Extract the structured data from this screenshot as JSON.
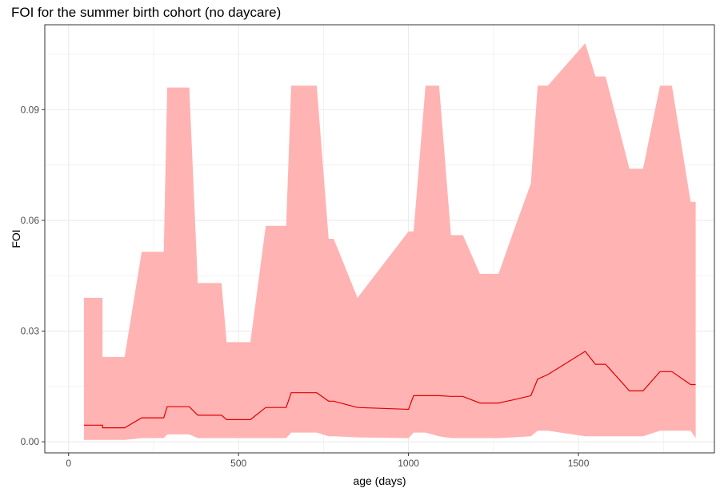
{
  "chart_data": {
    "type": "area",
    "title": "FOI for the summer birth cohort (no daycare)",
    "xlabel": "age (days)",
    "ylabel": "FOI",
    "xlim": [
      -70,
      1900
    ],
    "ylim": [
      -0.003,
      0.113
    ],
    "x_ticks": [
      0,
      500,
      1000,
      1500
    ],
    "x_tick_labels": [
      "0",
      "500",
      "1000",
      "1500"
    ],
    "y_ticks": [
      0.0,
      0.03,
      0.06,
      0.09
    ],
    "y_tick_labels": [
      "0.00",
      "0.03",
      "0.06",
      "0.09"
    ],
    "grid": true,
    "legend": "none",
    "colors": {
      "ribbon": "#ffb3b3",
      "line": "#e00000",
      "grid": "#ebebeb",
      "panel_border": "#333333"
    },
    "series": [
      {
        "kind": "ribbon",
        "x": [
          45,
          100,
          100,
          165,
          215,
          280,
          290,
          355,
          380,
          450,
          465,
          535,
          580,
          640,
          655,
          730,
          765,
          780,
          850,
          1000,
          1015,
          1050,
          1090,
          1125,
          1160,
          1210,
          1265,
          1305,
          1360,
          1380,
          1410,
          1520,
          1550,
          1580,
          1650,
          1690,
          1740,
          1775,
          1830,
          1845
        ],
        "upper": [
          0.039,
          0.039,
          0.023,
          0.023,
          0.0515,
          0.0515,
          0.096,
          0.096,
          0.043,
          0.043,
          0.027,
          0.027,
          0.0585,
          0.0585,
          0.0965,
          0.0965,
          0.055,
          0.055,
          0.039,
          0.057,
          0.057,
          0.0965,
          0.0965,
          0.056,
          0.056,
          0.0455,
          0.0455,
          0.056,
          0.07,
          0.0965,
          0.0965,
          0.108,
          0.099,
          0.099,
          0.074,
          0.074,
          0.0965,
          0.0965,
          0.065,
          0.065
        ],
        "lower": [
          0.0005,
          0.0005,
          0.0005,
          0.0005,
          0.001,
          0.001,
          0.002,
          0.002,
          0.001,
          0.001,
          0.001,
          0.001,
          0.001,
          0.001,
          0.0025,
          0.0025,
          0.0015,
          0.0015,
          0.0012,
          0.001,
          0.0025,
          0.0025,
          0.0015,
          0.001,
          0.001,
          0.001,
          0.001,
          0.0012,
          0.0015,
          0.003,
          0.003,
          0.0015,
          0.0015,
          0.0015,
          0.0015,
          0.0015,
          0.003,
          0.003,
          0.003,
          0.001
        ]
      },
      {
        "kind": "line",
        "x": [
          45,
          100,
          100,
          165,
          215,
          280,
          290,
          355,
          380,
          450,
          465,
          535,
          580,
          640,
          655,
          730,
          765,
          780,
          850,
          1000,
          1015,
          1050,
          1090,
          1125,
          1160,
          1210,
          1265,
          1305,
          1360,
          1380,
          1410,
          1520,
          1550,
          1580,
          1650,
          1690,
          1740,
          1775,
          1830,
          1845
        ],
        "y": [
          0.0045,
          0.0045,
          0.0038,
          0.0038,
          0.0065,
          0.0065,
          0.0095,
          0.0095,
          0.0072,
          0.0072,
          0.006,
          0.006,
          0.0093,
          0.0093,
          0.0133,
          0.0133,
          0.011,
          0.011,
          0.0093,
          0.0088,
          0.0125,
          0.0125,
          0.0125,
          0.0123,
          0.0123,
          0.0105,
          0.0105,
          0.0113,
          0.0125,
          0.017,
          0.0182,
          0.0245,
          0.021,
          0.021,
          0.0138,
          0.0138,
          0.019,
          0.019,
          0.0155,
          0.0155
        ]
      }
    ]
  }
}
